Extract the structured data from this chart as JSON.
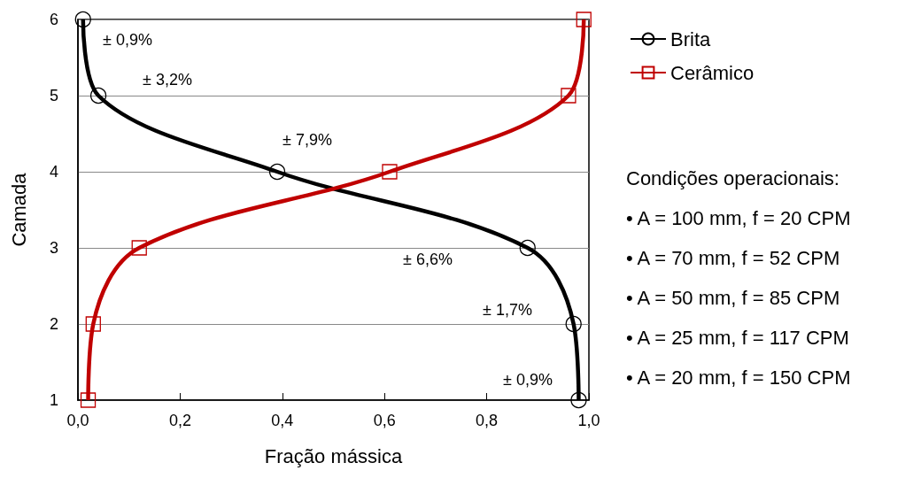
{
  "chart_data": {
    "type": "line",
    "xlabel": "Fração mássica",
    "ylabel": "Camada",
    "xlim": [
      0,
      1
    ],
    "xticks": [
      {
        "value": 0,
        "label": "0,0"
      },
      {
        "value": 0.2,
        "label": "0,2"
      },
      {
        "value": 0.4,
        "label": "0,4"
      },
      {
        "value": 0.6,
        "label": "0,6"
      },
      {
        "value": 0.8,
        "label": "0,8"
      },
      {
        "value": 1,
        "label": "1,0"
      }
    ],
    "ylim": [
      1,
      6
    ],
    "yticks": [
      1,
      2,
      3,
      4,
      5,
      6
    ],
    "grid": "y",
    "legend": "right",
    "series": [
      {
        "name": "Brita",
        "color": "#000000",
        "marker": "circle",
        "x": [
          0.01,
          0.04,
          0.39,
          0.88,
          0.97,
          0.98
        ],
        "values": [
          6,
          5,
          4,
          3,
          2,
          1
        ]
      },
      {
        "name": "Cerâmico",
        "color": "#c00000",
        "marker": "square",
        "x": [
          0.99,
          0.96,
          0.61,
          0.12,
          0.03,
          0.02
        ],
        "values": [
          6,
          5,
          4,
          3,
          2,
          1
        ]
      }
    ],
    "annotations": [
      "± 0,9%",
      "± 3,2%",
      "± 7,9%",
      "± 6,6%",
      "± 1,7%",
      "± 0,9%",
      "Condições operacionais:",
      "• A = 100 mm, f = 20 CPM",
      "• A = 70 mm, f = 52 CPM",
      "• A = 50 mm, f = 85 CPM",
      "• A = 25 mm, f = 117 CPM",
      "• A = 20 mm, f = 150 CPM"
    ]
  }
}
